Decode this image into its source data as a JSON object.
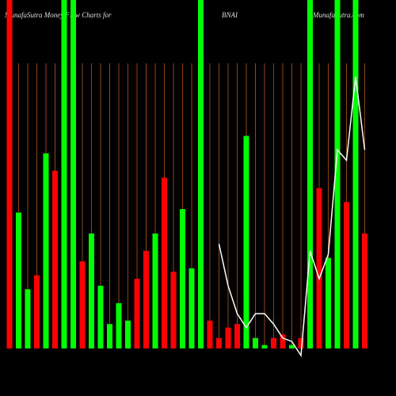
{
  "chart_data": {
    "type": "bar",
    "title": "MunafaSutra  Money Flow  Charts for",
    "subtitle": "BNAI",
    "annotations": [
      "MunafaSutra.com"
    ],
    "categories": [
      null,
      null,
      null,
      null,
      null,
      null,
      null,
      null,
      null,
      null,
      null,
      null,
      null,
      null,
      null,
      null,
      null,
      null,
      null,
      null,
      null,
      null,
      null,
      null,
      null,
      null,
      null,
      null,
      null,
      null,
      null,
      null,
      null,
      null,
      null,
      null,
      null,
      null,
      null,
      null
    ],
    "values": [
      100,
      39,
      17,
      21,
      56,
      51,
      100,
      100,
      25,
      33,
      18,
      7,
      13,
      8,
      20,
      28,
      33,
      49,
      22,
      40,
      23,
      100,
      8,
      3,
      6,
      7,
      61,
      3,
      1,
      3,
      4,
      1,
      3,
      100,
      46,
      26,
      100,
      42,
      100,
      33
    ],
    "colors": [
      "#ff0000",
      "#00ff00",
      "#00ff00",
      "#ff0000",
      "#00ff00",
      "#ff0000",
      "#00ff00",
      "#00ff00",
      "#ff0000",
      "#00ff00",
      "#00ff00",
      "#00ff00",
      "#00ff00",
      "#00ff00",
      "#ff0000",
      "#ff0000",
      "#00ff00",
      "#ff0000",
      "#ff0000",
      "#00ff00",
      "#00ff00",
      "#00ff00",
      "#ff0000",
      "#ff0000",
      "#ff0000",
      "#ff0000",
      "#00ff00",
      "#00ff00",
      "#00ff00",
      "#ff0000",
      "#ff0000",
      "#00ff00",
      "#ff0000",
      "#00ff00",
      "#ff0000",
      "#00ff00",
      "#00ff00",
      "#ff0000",
      "#00ff00",
      "#ff0000"
    ],
    "line": {
      "color": "#ffffff",
      "values": [
        null,
        null,
        null,
        null,
        null,
        null,
        null,
        null,
        null,
        null,
        null,
        null,
        null,
        null,
        null,
        null,
        null,
        null,
        null,
        null,
        null,
        null,
        null,
        30,
        18,
        10,
        6,
        10,
        10,
        7,
        3,
        2,
        -2,
        28,
        20,
        27,
        57,
        54,
        78,
        57
      ]
    },
    "ylim": [
      0,
      100
    ],
    "grid": true,
    "grid_color": "#8b4513"
  }
}
